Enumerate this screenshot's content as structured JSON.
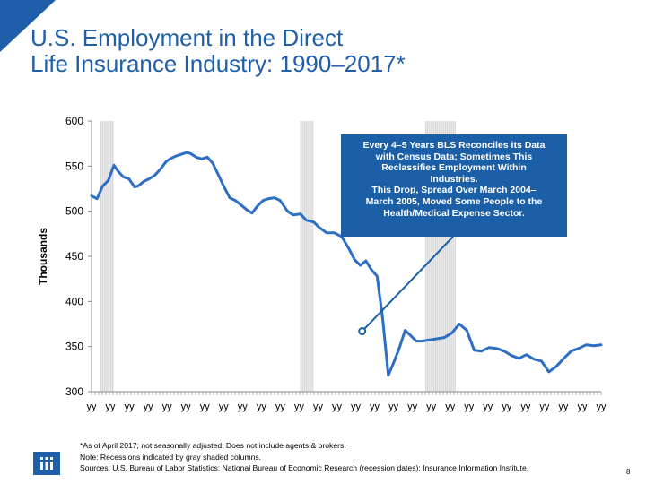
{
  "title_line1": "U.S. Employment in the Direct",
  "title_line2": "Life Insurance Industry: 1990–2017*",
  "callout": {
    "line1": "Every 4–5 Years BLS Reconciles its Data",
    "line2": "with Census Data; Sometimes This",
    "line3": "Reclassifies Employment Within",
    "line4": "Industries.",
    "line5": "This Drop, Spread Over March 2004–",
    "line6": "March 2005, Moved Some People to the",
    "line7": "Health/Medical Expense Sector."
  },
  "footnotes": {
    "note1": "*As of April 2017; not seasonally adjusted; Does not include agents & brokers.",
    "note2": "Note: Recessions indicated by gray shaded columns.",
    "note3": "Sources: U.S. Bureau of Labor Statistics;  National Bureau of Economic Research (recession dates); Insurance Information Institute."
  },
  "page_number": "8",
  "colors": {
    "accent": "#1f5ea8",
    "line": "#2e6fc4",
    "recession": "#d0d0d0",
    "callout_bg": "#1b5fa6"
  },
  "logo_icon": "iii-logo-icon",
  "chart_data": {
    "type": "line",
    "title": "",
    "xlabel": "",
    "ylabel": "Thousands",
    "ylim": [
      300,
      600
    ],
    "yticks": [
      300,
      350,
      400,
      450,
      500,
      550,
      600
    ],
    "xlim": [
      1990,
      2017.3
    ],
    "x_tick_label": "yy",
    "x_tick_count": 28,
    "grid": false,
    "recessions": [
      [
        1990.5,
        1991.2
      ],
      [
        2001.2,
        2001.9
      ],
      [
        2007.9,
        2009.5
      ]
    ],
    "series": [
      {
        "name": "",
        "x": [
          1990.0,
          1990.3,
          1990.6,
          1990.9,
          1991.2,
          1991.4,
          1991.7,
          1992.0,
          1992.3,
          1992.5,
          1992.8,
          1993.1,
          1993.4,
          1993.7,
          1994.0,
          1994.2,
          1994.5,
          1994.8,
          1995.1,
          1995.3,
          1995.6,
          1995.9,
          1996.2,
          1996.5,
          1996.8,
          1997.1,
          1997.4,
          1997.7,
          1998.0,
          1998.3,
          1998.6,
          1998.9,
          1999.2,
          1999.5,
          1999.8,
          2000.1,
          2000.5,
          2000.8,
          2001.2,
          2001.5,
          2001.9,
          2002.2,
          2002.6,
          2003.0,
          2003.4,
          2003.8,
          2004.1,
          2004.4,
          2004.7,
          2005.0,
          2005.3,
          2005.6,
          2005.9,
          2006.2,
          2006.5,
          2006.8,
          2007.1,
          2007.4,
          2007.7,
          2008.0,
          2008.3,
          2008.6,
          2008.9,
          2009.3,
          2009.7,
          2010.1,
          2010.5,
          2010.9,
          2011.3,
          2011.7,
          2012.1,
          2012.5,
          2012.9,
          2013.3,
          2013.7,
          2014.1,
          2014.5,
          2014.9,
          2015.3,
          2015.7,
          2016.1,
          2016.5,
          2016.9,
          2017.3
        ],
        "values": [
          517,
          514,
          528,
          534,
          551,
          545,
          538,
          536,
          527,
          528,
          533,
          536,
          540,
          547,
          555,
          558,
          561,
          563,
          565,
          564,
          560,
          558,
          560,
          553,
          540,
          527,
          515,
          512,
          507,
          502,
          498,
          506,
          512,
          514,
          515,
          512,
          500,
          496,
          497,
          490,
          488,
          482,
          476,
          476,
          472,
          458,
          446,
          440,
          445,
          435,
          428,
          380,
          318,
          333,
          349,
          368,
          362,
          356,
          356,
          357,
          358,
          359,
          360,
          365,
          375,
          368,
          346,
          345,
          349,
          348,
          345,
          340,
          337,
          341,
          336,
          334,
          322,
          328,
          337,
          345,
          348,
          352,
          351,
          352
        ]
      }
    ]
  }
}
